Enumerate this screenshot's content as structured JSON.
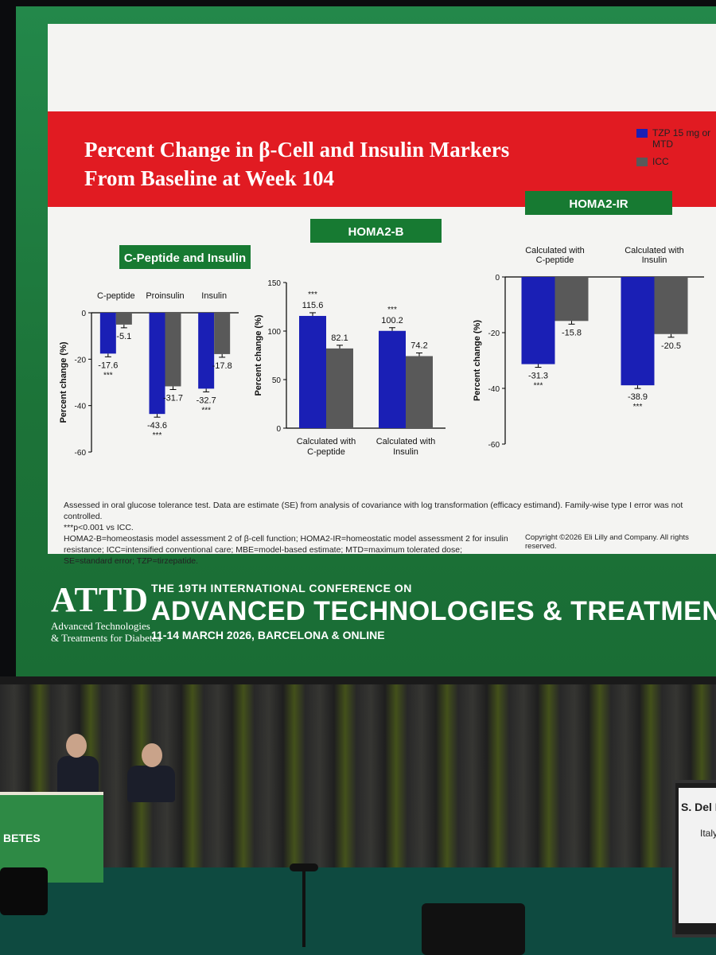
{
  "slide": {
    "title": "Percent Change in β-Cell and Insulin Markers From Baseline at Week 104",
    "legend": [
      {
        "label": "TZP 15 mg or MTD",
        "color": "#1a1fb5"
      },
      {
        "label": "ICC",
        "color": "#595959"
      }
    ],
    "footnote_lines": [
      "Assessed in oral glucose tolerance test. Data are estimate (SE) from analysis of covariance with log transformation (efficacy estimand). Family-wise type I error was not controlled.",
      "***p<0.001 vs ICC.",
      "HOMA2-B=homeostasis model assessment 2 of β-cell function; HOMA2-IR=homeostatic model assessment 2 for insulin resistance; ICC=intensified conventional care; MBE=model-based estimate; MTD=maximum tolerated dose; SE=standard error; TZP=tirzepatide."
    ],
    "copyright": "Copyright ©2026 Eli Lilly and Company. All rights reserved."
  },
  "chart_data": [
    {
      "type": "bar",
      "title": "C-Peptide and Insulin",
      "ylabel": "Percent change (%)",
      "ylim": [
        -60,
        0
      ],
      "yticks": [
        0,
        -20,
        -40,
        -60
      ],
      "categories": [
        "C-peptide",
        "Proinsulin",
        "Insulin"
      ],
      "series": [
        {
          "name": "TZP 15 mg or MTD",
          "values": [
            -17.6,
            -43.6,
            -32.7
          ]
        },
        {
          "name": "ICC",
          "values": [
            -5.1,
            -31.7,
            -17.8
          ]
        }
      ],
      "data_labels": [
        [
          "-17.6",
          "-43.6",
          "-32.7"
        ],
        [
          "-5.1",
          "-31.7",
          "-17.8"
        ]
      ],
      "significance": [
        "***",
        "***",
        "***"
      ]
    },
    {
      "type": "bar",
      "title": "HOMA2-B",
      "ylabel": "Percent change (%)",
      "ylim": [
        0,
        150
      ],
      "yticks": [
        150,
        100,
        50,
        0
      ],
      "categories": [
        "Calculated with C-peptide",
        "Calculated with Insulin"
      ],
      "series": [
        {
          "name": "TZP 15 mg or MTD",
          "values": [
            115.6,
            100.2
          ]
        },
        {
          "name": "ICC",
          "values": [
            82.1,
            74.2
          ]
        }
      ],
      "data_labels": [
        [
          "115.6",
          "100.2"
        ],
        [
          "82.1",
          "74.2"
        ]
      ],
      "significance": [
        "***",
        "***"
      ]
    },
    {
      "type": "bar",
      "title": "HOMA2-IR",
      "ylabel": "Percent change (%)",
      "ylim": [
        -60,
        0
      ],
      "yticks": [
        0,
        -20,
        -40,
        -60
      ],
      "categories": [
        "Calculated with C-peptide",
        "Calculated with Insulin"
      ],
      "series": [
        {
          "name": "TZP 15 mg or MTD",
          "values": [
            -31.3,
            -38.9
          ]
        },
        {
          "name": "ICC",
          "values": [
            -15.8,
            -20.5
          ]
        }
      ],
      "data_labels": [
        [
          "-31.3",
          "-38.9"
        ],
        [
          "-15.8",
          "-20.5"
        ]
      ],
      "significance": [
        "***",
        "***"
      ]
    }
  ],
  "conference": {
    "logo_text": "ATTD",
    "logo_sub1": "Advanced Technologies",
    "logo_sub2": "& Treatments for Diabetes",
    "line1": "THE 19TH INTERNATIONAL CONFERENCE ON",
    "line2": "ADVANCED TECHNOLOGIES & TREATMENTS FOR DIABE",
    "line3": "11-14 MARCH 2026, BARCELONA & ONLINE"
  },
  "stage": {
    "podium_text": "BETES",
    "sign_name": "S. Del P",
    "sign_country": "Italy"
  }
}
